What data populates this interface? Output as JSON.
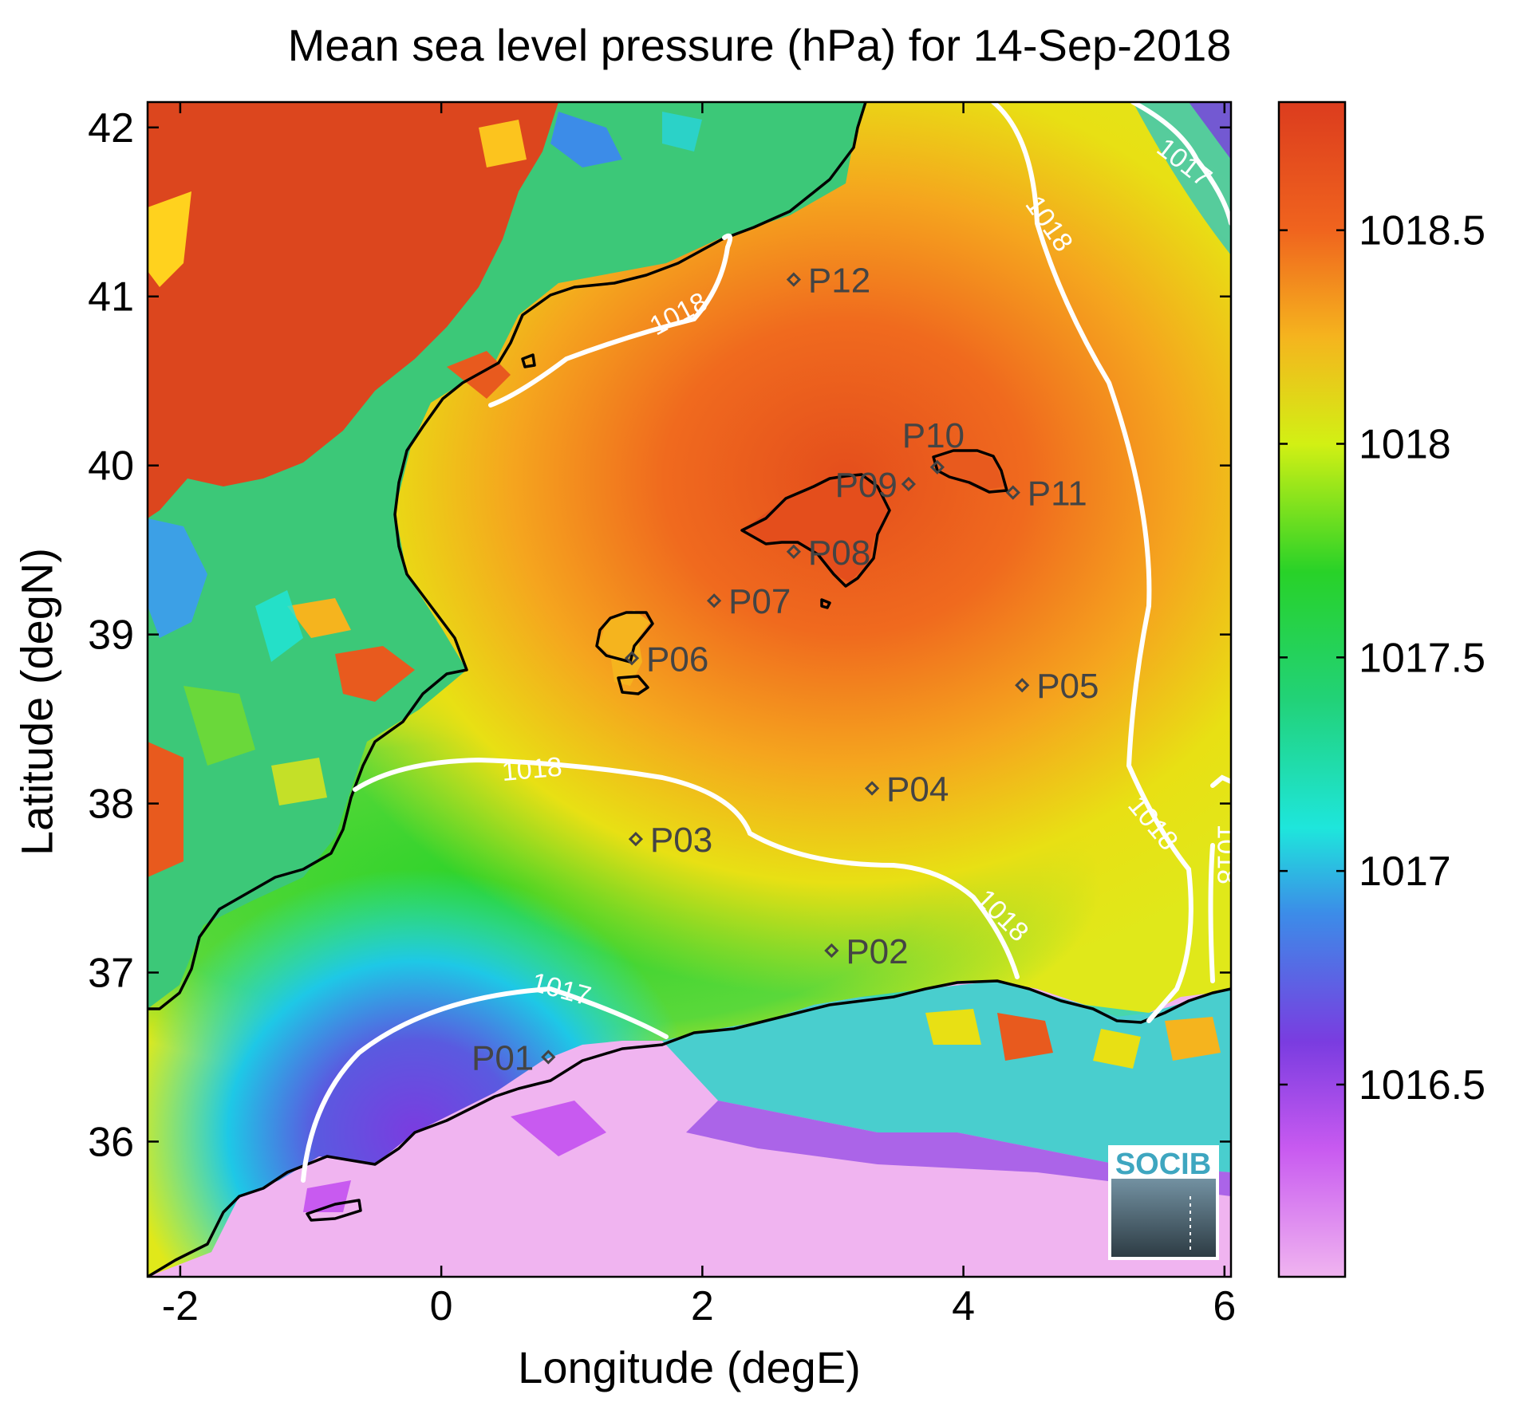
{
  "title": "Mean sea level pressure (hPa) for 14-Sep-2018",
  "xlabel": "Longitude (degE)",
  "ylabel": "Latitude (degN)",
  "logo_text": "SOCIB",
  "chart_data": {
    "type": "heatmap",
    "variable": "Mean sea level pressure",
    "units": "hPa",
    "date": "14-Sep-2018",
    "xlim": [
      -2.25,
      6.05
    ],
    "ylim": [
      35.2,
      42.15
    ],
    "x_ticks": [
      -2,
      0,
      2,
      4,
      6
    ],
    "x_tick_labels": [
      "-2",
      "0",
      "2",
      "4",
      "6"
    ],
    "y_ticks": [
      36,
      37,
      38,
      39,
      40,
      41,
      42
    ],
    "y_tick_labels": [
      "36",
      "37",
      "38",
      "39",
      "40",
      "41",
      "42"
    ],
    "colorbar": {
      "range": [
        1016.05,
        1018.8
      ],
      "ticks": [
        1016.5,
        1017,
        1017.5,
        1018,
        1018.5
      ],
      "tick_labels": [
        "1016.5",
        "1017",
        "1017.5",
        "1018",
        "1018.5"
      ],
      "colormap": [
        {
          "value": 1016.05,
          "color": "#f0b4f0"
        },
        {
          "value": 1016.35,
          "color": "#c85af0"
        },
        {
          "value": 1016.6,
          "color": "#7a3ce0"
        },
        {
          "value": 1016.9,
          "color": "#3c8ce8"
        },
        {
          "value": 1017.1,
          "color": "#1ee6dc"
        },
        {
          "value": 1017.4,
          "color": "#22d278"
        },
        {
          "value": 1017.7,
          "color": "#28d228"
        },
        {
          "value": 1018.0,
          "color": "#d2f014"
        },
        {
          "value": 1018.25,
          "color": "#f5b41e"
        },
        {
          "value": 1018.5,
          "color": "#f0641e"
        },
        {
          "value": 1018.8,
          "color": "#dc3c1e"
        }
      ]
    },
    "contour_labels": [
      {
        "text": "1018",
        "lon": 0.7,
        "lat": 38.15
      },
      {
        "text": "1018",
        "lon": 1.85,
        "lat": 40.85
      },
      {
        "text": "1018",
        "lon": 4.6,
        "lat": 41.4
      },
      {
        "text": "1018",
        "lon": 5.4,
        "lat": 37.85
      },
      {
        "text": "1018",
        "lon": 4.25,
        "lat": 37.3
      },
      {
        "text": "1018",
        "lon": 5.95,
        "lat": 37.7
      },
      {
        "text": "1017",
        "lon": 0.9,
        "lat": 36.85
      },
      {
        "text": "1017",
        "lon": 5.65,
        "lat": 41.75
      }
    ],
    "stations": [
      {
        "name": "P01",
        "lon": 0.82,
        "lat": 36.5
      },
      {
        "name": "P02",
        "lon": 2.99,
        "lat": 37.13
      },
      {
        "name": "P03",
        "lon": 1.49,
        "lat": 37.79
      },
      {
        "name": "P04",
        "lon": 3.3,
        "lat": 38.09
      },
      {
        "name": "P05",
        "lon": 4.45,
        "lat": 38.7
      },
      {
        "name": "P06",
        "lon": 1.46,
        "lat": 38.86
      },
      {
        "name": "P07",
        "lon": 2.09,
        "lat": 39.2
      },
      {
        "name": "P08",
        "lon": 2.7,
        "lat": 39.49
      },
      {
        "name": "P09",
        "lon": 3.58,
        "lat": 39.89
      },
      {
        "name": "P10",
        "lon": 3.8,
        "lat": 39.99
      },
      {
        "name": "P11",
        "lon": 4.38,
        "lat": 39.84
      },
      {
        "name": "P12",
        "lon": 2.7,
        "lat": 41.1
      }
    ]
  }
}
